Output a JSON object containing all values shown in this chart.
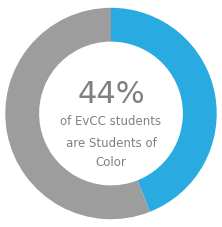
{
  "percentage": 44,
  "color_highlight": "#29ABE2",
  "color_base": "#9D9D9D",
  "background_color": "#FFFFFF",
  "big_text": "44%",
  "line1": "of EvCC students",
  "line2": "are Students of",
  "line3": "Color",
  "big_fontsize": 22,
  "sub_fontsize": 8.5,
  "text_color": "#808080",
  "donut_width": 0.32,
  "start_angle": 90
}
